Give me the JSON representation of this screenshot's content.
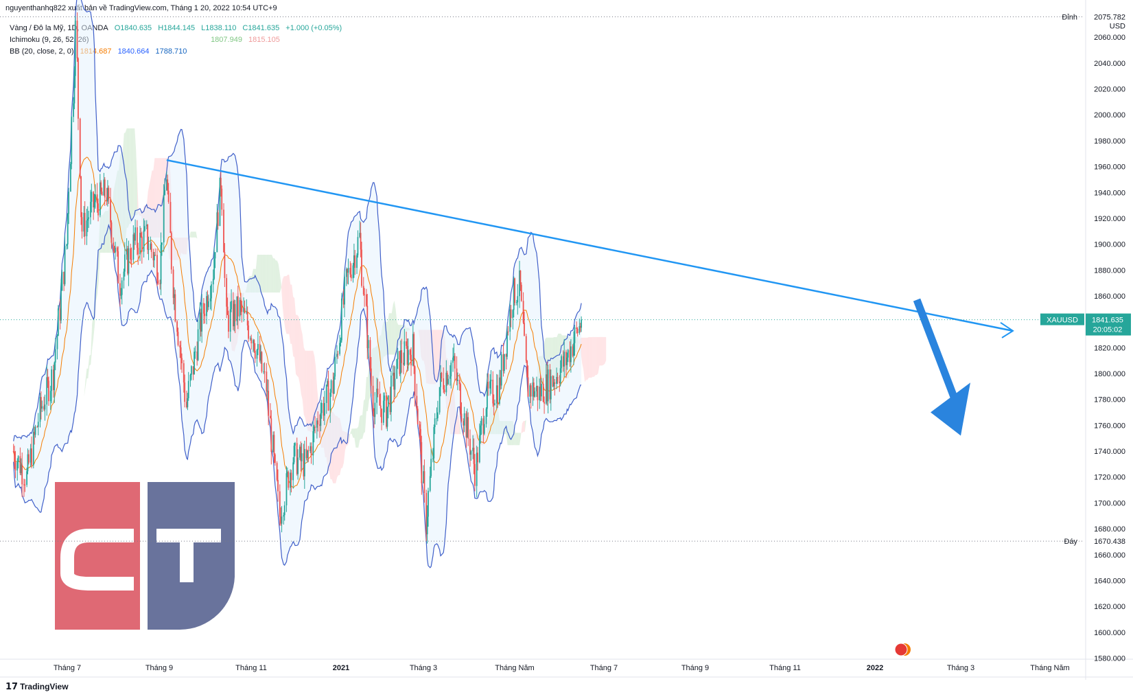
{
  "header": {
    "publish_text": "nguyenthanhq822 xuất bản về TradingView.com, Tháng 1 20, 2022 10:54 UTC+9"
  },
  "legend": {
    "symbol_text": "Vàng / Đô la Mỹ, 1D, OANDA",
    "open": "O1840.635",
    "high": "H1844.145",
    "low": "L1838.110",
    "close": "C1841.635",
    "change": "+1.000 (+0.05%)",
    "ichimoku_label": "Ichimoku (9, 26, 52, 26)",
    "ichimoku_a": "1807.949",
    "ichimoku_b": "1815.105",
    "bb_label": "BB (20, close, 2, 0)",
    "bb_basis": "1814.687",
    "bb_upper": "1840.664",
    "bb_lower": "1788.710"
  },
  "price_scale": {
    "high_tag": "Đỉnh",
    "high_value": "2075.782",
    "currency": "USD",
    "low_tag": "Đáy",
    "low_value": "1670.438",
    "symbol_tag": "XAUUSD",
    "current_price": "1841.635",
    "countdown": "20:05:02"
  },
  "footer": {
    "brand": "TradingView"
  },
  "colors": {
    "up": "#26a69a",
    "down": "#ef5350",
    "trendline": "#2196f3",
    "bb_band": "#3f5fc9",
    "bb_basis": "#f57c00",
    "logo_red": "#d94f5c",
    "logo_navy": "#4f5b8b"
  },
  "chart_data": {
    "type": "candlestick",
    "symbol": "XAUUSD",
    "ylim": [
      1580,
      2080
    ],
    "y_ticks": [
      1580,
      1600,
      1620,
      1640,
      1660,
      1680,
      1700,
      1720,
      1740,
      1760,
      1780,
      1800,
      1820,
      1840,
      1860,
      1880,
      1900,
      1920,
      1940,
      1960,
      1980,
      2000,
      2020,
      2040,
      2060
    ],
    "x_ticks": [
      {
        "label": "Tháng 7",
        "bold": false
      },
      {
        "label": "Tháng 9",
        "bold": false
      },
      {
        "label": "Tháng 11",
        "bold": false
      },
      {
        "label": "2021",
        "bold": true
      },
      {
        "label": "Tháng 3",
        "bold": false
      },
      {
        "label": "Tháng Năm",
        "bold": false
      },
      {
        "label": "Tháng 7",
        "bold": false
      },
      {
        "label": "Tháng 9",
        "bold": false
      },
      {
        "label": "Tháng 11",
        "bold": false
      },
      {
        "label": "2022",
        "bold": true
      },
      {
        "label": "Tháng 3",
        "bold": false
      },
      {
        "label": "Tháng Năm",
        "bold": false
      }
    ],
    "price_path": [
      [
        "2020-06-01",
        1740
      ],
      [
        "2020-06-15",
        1720
      ],
      [
        "2020-06-29",
        1770
      ],
      [
        "2020-07-13",
        1800
      ],
      [
        "2020-07-27",
        1900
      ],
      [
        "2020-08-06",
        2070
      ],
      [
        "2020-08-12",
        1910
      ],
      [
        "2020-08-24",
        1930
      ],
      [
        "2020-09-07",
        1940
      ],
      [
        "2020-09-21",
        1870
      ],
      [
        "2020-10-05",
        1900
      ],
      [
        "2020-10-19",
        1905
      ],
      [
        "2020-11-02",
        1880
      ],
      [
        "2020-11-09",
        1955
      ],
      [
        "2020-11-16",
        1870
      ],
      [
        "2020-11-30",
        1775
      ],
      [
        "2020-12-14",
        1835
      ],
      [
        "2020-12-28",
        1880
      ],
      [
        "2021-01-06",
        1955
      ],
      [
        "2021-01-11",
        1840
      ],
      [
        "2021-01-25",
        1850
      ],
      [
        "2021-02-08",
        1830
      ],
      [
        "2021-02-22",
        1790
      ],
      [
        "2021-03-08",
        1690
      ],
      [
        "2021-03-22",
        1735
      ],
      [
        "2021-04-05",
        1730
      ],
      [
        "2021-04-19",
        1770
      ],
      [
        "2021-05-03",
        1790
      ],
      [
        "2021-05-17",
        1870
      ],
      [
        "2021-05-31",
        1905
      ],
      [
        "2021-06-14",
        1780
      ],
      [
        "2021-06-28",
        1770
      ],
      [
        "2021-07-12",
        1810
      ],
      [
        "2021-07-26",
        1820
      ],
      [
        "2021-08-09",
        1685
      ],
      [
        "2021-08-23",
        1790
      ],
      [
        "2021-09-06",
        1810
      ],
      [
        "2021-09-20",
        1760
      ],
      [
        "2021-09-30",
        1725
      ],
      [
        "2021-10-11",
        1780
      ],
      [
        "2021-10-25",
        1790
      ],
      [
        "2021-11-08",
        1860
      ],
      [
        "2021-11-16",
        1868
      ],
      [
        "2021-11-23",
        1790
      ],
      [
        "2021-12-06",
        1785
      ],
      [
        "2021-12-20",
        1795
      ],
      [
        "2022-01-03",
        1810
      ],
      [
        "2022-01-20",
        1841.635
      ]
    ],
    "trendline": [
      [
        "2020-11-09",
        1965
      ],
      [
        "2022-03-15",
        1833
      ]
    ],
    "last_price": 1841.635,
    "period_high": 2075.782,
    "period_low": 1670.438
  }
}
